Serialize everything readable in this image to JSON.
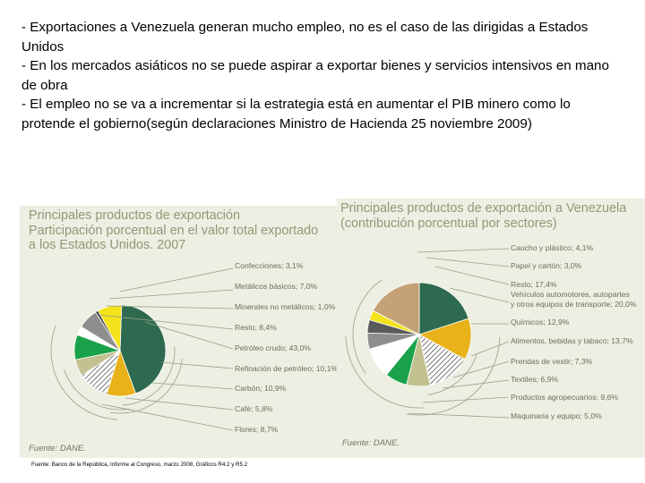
{
  "bullets": [
    "- Exportaciones a Venezuela generan mucho empleo, no es el caso de las dirigidas a Estados Unidos",
    "- En los mercados asiáticos no se puede aspirar a exportar bienes y servicios intensivos en mano de obra",
    "- El empleo no se va a incrementar si la estrategia está en aumentar el PIB minero como lo protende el gobierno(según declaraciones Ministro de Hacienda 25 noviembre 2009)"
  ],
  "footnote": "Fuente: Banco de la República, Informe al Congreso, marzo 2008, Gráficos R4.2 y R5.2",
  "chart_data": [
    {
      "type": "pie",
      "title_lines": [
        "Principales productos de exportación",
        "Participación porcentual en el valor total exportado",
        "a los Estados Unidos. 2007"
      ],
      "source": "Fuente: DANE.",
      "categories": [
        "Confecciones",
        "Metálicos básicos",
        "Minerales no metálicos",
        "Resto",
        "Petróleo crudo",
        "Refinación de petróleo",
        "Carbón",
        "Café",
        "Flores"
      ],
      "values": [
        3.1,
        7.0,
        1.0,
        8.4,
        43.0,
        10.1,
        10.9,
        5.8,
        8.7
      ],
      "labels": [
        "Confecciones; 3,1%",
        "Metálicos básicos; 7,0%",
        "Minerales no metálicos; 1,0%",
        "Resto; 8,4%",
        "Petróleo crudo; 43,0%",
        "Refinación de petróleo; 10,1%",
        "Carbón; 10,9%",
        "Café; 5,8%",
        "Flores; 8,7%"
      ],
      "slices": [
        {
          "category": "Petróleo crudo",
          "value": 43.0,
          "color": "#2d6a4f",
          "fill": "solid"
        },
        {
          "category": "Refinación de petróleo",
          "value": 10.1,
          "color": "#e9b11a",
          "fill": "solid"
        },
        {
          "category": "Carbón",
          "value": 10.9,
          "color": "#ffffff",
          "fill": "hatch"
        },
        {
          "category": "Café",
          "value": 5.8,
          "color": "#c2c190",
          "fill": "solid"
        },
        {
          "category": "Flores",
          "value": 8.7,
          "color": "#1aa24a",
          "fill": "solid"
        },
        {
          "category": "Confecciones",
          "value": 3.1,
          "color": "#ffffff",
          "fill": "solid"
        },
        {
          "category": "Metálicos básicos",
          "value": 7.0,
          "color": "#8e8e8e",
          "fill": "solid"
        },
        {
          "category": "Minerales no metálicos",
          "value": 1.0,
          "color": "#3f3f3f",
          "fill": "solid"
        },
        {
          "category": "Resto",
          "value": 8.4,
          "color": "#f4e21a",
          "fill": "solid"
        }
      ]
    },
    {
      "type": "pie",
      "title_lines": [
        "Principales productos de exportación a Venezuela",
        "(contribución porcentual por sectores)"
      ],
      "source": "Fuente: DANE.",
      "categories": [
        "Caucho y plástico",
        "Papel y cartón",
        "Resto",
        "Vehículos automotores, autopartes y otros equipos de transporte",
        "Químicos",
        "Alimentos, bebidas y tabaco",
        "Prendas de vestir",
        "Textiles",
        "Productos agropecuarios",
        "Maquinaria y equipo"
      ],
      "values": [
        4.1,
        3.0,
        17.4,
        20.0,
        12.9,
        13.7,
        7.3,
        6.9,
        9.6,
        5.0
      ],
      "label_lines": [
        [
          "Caucho y plástico; 4,1%"
        ],
        [
          "Papel y cartón; 3,0%"
        ],
        [
          "Resto; 17,4%",
          "Vehículos automotores, autopartes",
          "y otros equipos de transporte; 20,0%"
        ],
        [
          "Químicos; 12,9%"
        ],
        [
          "Alimentos, bebidas y tabaco; 13,7%"
        ],
        [
          "Prendas de vestir; 7,3%"
        ],
        [
          "Textiles; 6,9%"
        ],
        [
          "Productos agropecuarios; 9,6%"
        ],
        [
          "Maquinaria y equipo; 5,0%"
        ]
      ],
      "slices": [
        {
          "category": "Vehículos automotores, autopartes y otros equipos de transporte",
          "value": 20.0,
          "color": "#2d6a4f",
          "fill": "solid"
        },
        {
          "category": "Químicos",
          "value": 12.9,
          "color": "#e9b11a",
          "fill": "solid"
        },
        {
          "category": "Alimentos, bebidas y tabaco",
          "value": 13.7,
          "color": "#ffffff",
          "fill": "hatch"
        },
        {
          "category": "Prendas de vestir",
          "value": 7.3,
          "color": "#c2c190",
          "fill": "solid"
        },
        {
          "category": "Textiles",
          "value": 6.9,
          "color": "#1aa24a",
          "fill": "solid"
        },
        {
          "category": "Productos agropecuarios",
          "value": 9.6,
          "color": "#ffffff",
          "fill": "solid"
        },
        {
          "category": "Maquinaria y equipo",
          "value": 5.0,
          "color": "#8e8e8e",
          "fill": "solid"
        },
        {
          "category": "Caucho y plástico",
          "value": 4.1,
          "color": "#5a5a5a",
          "fill": "solid"
        },
        {
          "category": "Papel y cartón",
          "value": 3.0,
          "color": "#f4e21a",
          "fill": "solid"
        },
        {
          "category": "Resto",
          "value": 17.4,
          "color": "#c4a276",
          "fill": "solid"
        }
      ]
    }
  ]
}
